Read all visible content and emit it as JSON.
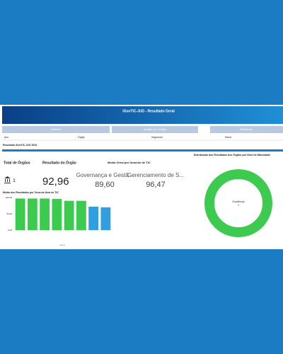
{
  "header": {
    "title": "iGovTIC-JUD - Resultado Geral"
  },
  "tabs": [
    "Gráficos",
    "Análise por Órgão",
    "Relatórios"
  ],
  "filters": [
    "Ano",
    "Órgão",
    "Segmento",
    "Ramo"
  ],
  "section_title": "Resultado iGovTIC-JUD 2024",
  "kpis": {
    "total_label": "Total de Órgãos",
    "total_value": 1,
    "result_label": "Resultado do Órgão",
    "result_value": {
      "value": 92.96,
      "label": "92,96"
    },
    "domain_title": "Média Geral por Domínio de TIC",
    "domains": [
      {
        "name": "Governança e Gestã...",
        "value": {
          "value": 89.6,
          "label": "89,60"
        }
      },
      {
        "name": "Gerenciamento de S...",
        "value": {
          "value": 96.47,
          "label": "96,47"
        }
      }
    ]
  },
  "chart_data": [
    {
      "type": "bar",
      "title": "Média dos Resultados por Tema da Área de TIC",
      "x_label": "Tema",
      "values": [
        97,
        97,
        97,
        96,
        90,
        90,
        72,
        70
      ],
      "colors": [
        "#3ccb4f",
        "#3ccb4f",
        "#3ccb4f",
        "#3ccb4f",
        "#3ccb4f",
        "#3ccb4f",
        "#2f9fe0",
        "#2f9fe0"
      ],
      "ylim": [
        0,
        100
      ],
      "yticks": [
        {
          "value": 0,
          "label": "0,00"
        },
        {
          "value": 50,
          "label": "50,00"
        },
        {
          "value": 100,
          "label": "100,00"
        }
      ]
    },
    {
      "type": "pie",
      "title": "Distribuição dos Resultados dos Órgãos por Nível de Maturidade",
      "categories": [
        "Excelência"
      ],
      "values": [
        1
      ],
      "colors": [
        "#3ccb4f"
      ]
    }
  ]
}
